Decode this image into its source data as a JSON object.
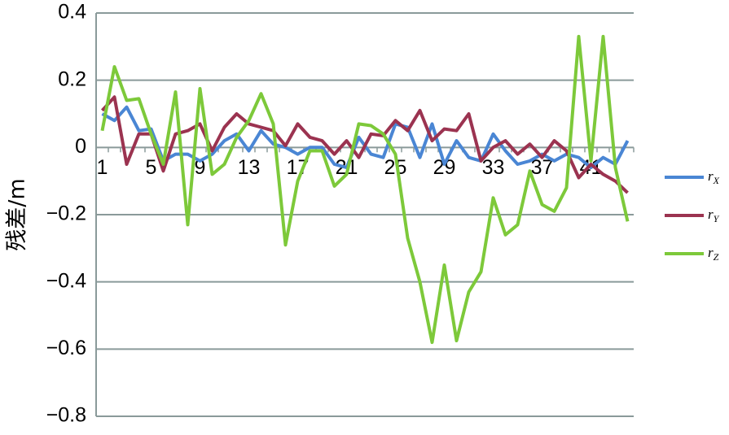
{
  "chart_data": {
    "type": "line",
    "y_label": "残差/m",
    "categories": [
      "1",
      null,
      null,
      null,
      "5",
      null,
      null,
      null,
      "9",
      null,
      null,
      null,
      "13",
      null,
      null,
      null,
      "17",
      null,
      null,
      null,
      "21",
      null,
      null,
      null,
      "25",
      null,
      null,
      null,
      "29",
      null,
      null,
      null,
      "33",
      null,
      null,
      null,
      "37",
      null,
      null,
      null,
      "41",
      null,
      null,
      null
    ],
    "ylim": [
      -0.8,
      0.4
    ],
    "yticks": [
      0.4,
      0.2,
      0,
      {
        "value": -0.2,
        "label": "−0.2"
      },
      {
        "value": -0.4,
        "label": "−0.4"
      },
      {
        "value": -0.6,
        "label": "−0.6"
      },
      {
        "value": -0.8,
        "label": "−0.8"
      }
    ],
    "grid": true,
    "legend": "right",
    "series": [
      {
        "name": "rX",
        "color": "#4a86d4",
        "values": [
          0.1,
          0.08,
          0.12,
          0.05,
          0.055,
          -0.04,
          -0.02,
          -0.02,
          -0.04,
          -0.02,
          0.02,
          0.04,
          -0.01,
          0.05,
          0.01,
          0.0,
          -0.02,
          0.0,
          0.0,
          -0.05,
          -0.06,
          0.03,
          -0.02,
          -0.03,
          0.07,
          0.06,
          -0.03,
          0.07,
          -0.05,
          0.02,
          -0.03,
          -0.04,
          0.04,
          -0.01,
          -0.05,
          -0.04,
          -0.02,
          -0.04,
          -0.02,
          -0.03,
          -0.06,
          -0.03,
          -0.05,
          0.02
        ]
      },
      {
        "name": "rY",
        "color": "#9b3350",
        "values": [
          0.11,
          0.15,
          -0.05,
          0.04,
          0.04,
          -0.07,
          0.04,
          0.05,
          0.07,
          -0.01,
          0.06,
          0.1,
          0.07,
          0.06,
          0.05,
          0.005,
          0.07,
          0.03,
          0.02,
          -0.02,
          0.02,
          -0.03,
          0.04,
          0.035,
          0.08,
          0.05,
          0.11,
          0.02,
          0.055,
          0.05,
          0.1,
          -0.04,
          0.0,
          0.02,
          -0.02,
          0.01,
          -0.03,
          0.02,
          -0.01,
          -0.09,
          -0.05,
          -0.08,
          -0.1,
          -0.135
        ]
      },
      {
        "name": "rZ",
        "color": "#7dc93a",
        "values": [
          0.05,
          0.24,
          0.14,
          0.145,
          0.04,
          -0.05,
          0.165,
          -0.23,
          0.175,
          -0.08,
          -0.05,
          0.03,
          0.08,
          0.16,
          0.07,
          -0.29,
          -0.1,
          -0.01,
          -0.01,
          -0.115,
          -0.08,
          0.07,
          0.065,
          0.04,
          -0.02,
          -0.27,
          -0.4,
          -0.58,
          -0.35,
          -0.575,
          -0.43,
          -0.37,
          -0.15,
          -0.26,
          -0.23,
          -0.07,
          -0.17,
          -0.19,
          -0.12,
          0.33,
          -0.04,
          0.33,
          -0.06,
          -0.22
        ]
      }
    ]
  }
}
